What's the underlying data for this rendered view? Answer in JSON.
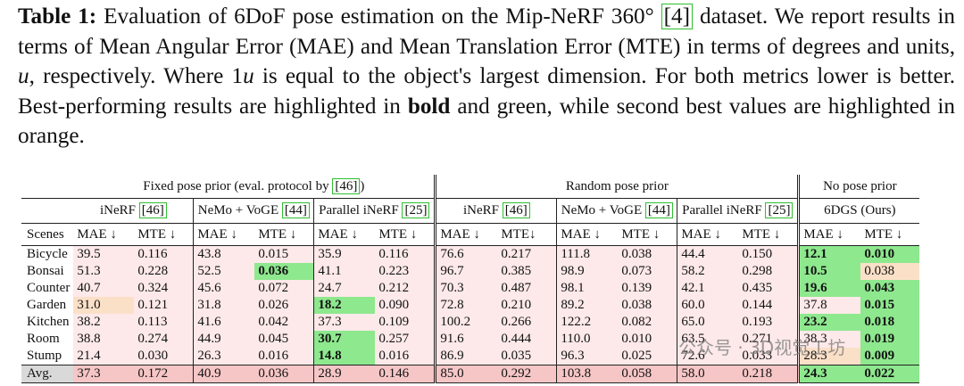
{
  "caption": {
    "label": "Table 1:",
    "part1": "Evaluation of 6DoF pose estimation on the Mip-NeRF 360° ",
    "ref": "[4]",
    "part2": " dataset. We report results in terms of Mean Angular Error (MAE) and Mean Translation Error (MTE) in terms of degrees and units, ",
    "u": "u",
    "part3": ", respectively. Where 1",
    "u2": "u",
    "part4": " is equal to the object's largest dimension. For both metrics lower is better. Best-performing results are highlighted in ",
    "bold_word": "bold",
    "part5": " and green, while second best values are highlighted in orange."
  },
  "groups": {
    "fixed": "Fixed pose prior (eval. protocol by ",
    "fixed_ref": "[46]",
    "fixed_end": ")",
    "random": "Random pose prior",
    "none": "No pose prior"
  },
  "methods": {
    "inerf": "iNeRF ",
    "inerf_ref": "[46]",
    "nemo": "NeMo + VoGE ",
    "nemo_ref": "[44]",
    "parallel": "Parallel iNeRF ",
    "parallel_ref": "[25]",
    "ours": "6DGS (Ours)"
  },
  "columns": {
    "scenes": "Scenes",
    "mae": "MAE ↓",
    "mte": "MTE ↓",
    "mte_tight": "MTE↓"
  },
  "rows": [
    {
      "scene": "Bicycle",
      "v": [
        "39.5",
        "0.116",
        "43.8",
        "0.015",
        "35.9",
        "0.116",
        "76.6",
        "0.217",
        "111.8",
        "0.038",
        "44.4",
        "0.150",
        "12.1",
        "0.010"
      ]
    },
    {
      "scene": "Bonsai",
      "v": [
        "51.3",
        "0.228",
        "52.5",
        "0.036",
        "41.1",
        "0.223",
        "96.7",
        "0.385",
        "98.9",
        "0.073",
        "58.2",
        "0.298",
        "10.5",
        "0.038"
      ]
    },
    {
      "scene": "Counter",
      "v": [
        "40.7",
        "0.324",
        "45.6",
        "0.072",
        "24.7",
        "0.212",
        "70.3",
        "0.487",
        "98.1",
        "0.139",
        "42.1",
        "0.435",
        "19.6",
        "0.043"
      ]
    },
    {
      "scene": "Garden",
      "v": [
        "31.0",
        "0.121",
        "31.8",
        "0.026",
        "18.2",
        "0.090",
        "72.8",
        "0.210",
        "89.2",
        "0.038",
        "60.0",
        "0.144",
        "37.8",
        "0.015"
      ]
    },
    {
      "scene": "Kitchen",
      "v": [
        "38.2",
        "0.113",
        "41.6",
        "0.042",
        "37.3",
        "0.109",
        "100.2",
        "0.266",
        "122.2",
        "0.082",
        "65.0",
        "0.193",
        "23.2",
        "0.018"
      ]
    },
    {
      "scene": "Room",
      "v": [
        "38.8",
        "0.274",
        "44.9",
        "0.045",
        "30.7",
        "0.257",
        "91.6",
        "0.444",
        "110.0",
        "0.010",
        "63.5",
        "0.271",
        "38.3",
        "0.019"
      ]
    },
    {
      "scene": "Stump",
      "v": [
        "21.4",
        "0.030",
        "26.3",
        "0.016",
        "14.8",
        "0.016",
        "86.9",
        "0.035",
        "96.3",
        "0.025",
        "72.6",
        "0.033",
        "28.3",
        "0.009"
      ]
    }
  ],
  "avg": {
    "scene": "Avg.",
    "v": [
      "37.3",
      "0.172",
      "40.9",
      "0.036",
      "28.9",
      "0.146",
      "85.0",
      "0.292",
      "103.8",
      "0.058",
      "58.0",
      "0.218",
      "24.3",
      "0.022"
    ]
  },
  "watermark": "公众号 · 3D视觉工坊",
  "colors": {
    "best": "#8ee88e",
    "second": "#fbe0c8",
    "pink": "#fde9e9",
    "avg": "#f6c6c6"
  }
}
